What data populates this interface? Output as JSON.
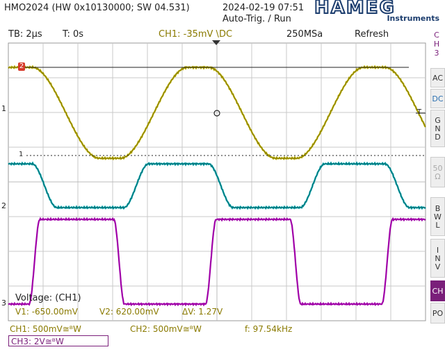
{
  "header": {
    "device": "HMO2024 (HW 0x10130000; SW 04.531)",
    "datetime": "2024-02-19 07:51",
    "trigger_status": "Auto-Trig. / Run",
    "brand": "HAMEG",
    "brand_sub": "Instruments"
  },
  "status_bar": {
    "timebase": "TB: 2µs",
    "time_offset": "T: 0s",
    "trigger": "CH1: -35mV \\DC",
    "sample_rate": "250MSa",
    "mode": "Refresh"
  },
  "sidebar": {
    "channel_label": [
      "C",
      "H",
      "3"
    ],
    "buttons": [
      {
        "name": "ac",
        "lines": [
          "AC"
        ]
      },
      {
        "name": "dc",
        "lines": [
          "DC"
        ]
      },
      {
        "name": "gnd",
        "lines": [
          "G",
          "N",
          "D"
        ]
      },
      {
        "name": "50ohm",
        "lines": [
          "50",
          "Ω"
        ]
      },
      {
        "name": "bwl",
        "lines": [
          "B",
          "W",
          "L"
        ]
      },
      {
        "name": "inv",
        "lines": [
          "I",
          "N",
          "V"
        ]
      },
      {
        "name": "ch",
        "lines": [
          "CH"
        ]
      },
      {
        "name": "po",
        "lines": [
          "PO"
        ]
      }
    ]
  },
  "cursor_readout": {
    "title": "Voltage: (CH1)",
    "v1": "V1: -650.00mV",
    "v2": "V2: 620.00mV",
    "delta": "ΔV: 1.27V"
  },
  "footer": {
    "ch1": "CH1: 500mV≅ᴮW",
    "ch2": "CH2: 500mV≅ᴮW",
    "frequency": "f: 97.54kHz",
    "ch3": "CH3: 2V≅ᴮW"
  },
  "markers": {
    "ch1": "1",
    "ch2": "2",
    "ch3": "3",
    "trigger_level": "1",
    "cursor": "2",
    "trigger_pos": "T"
  },
  "colors": {
    "ch1": "#bdb000",
    "ch2": "#00a0a8",
    "ch3": "#a000a8",
    "grid": "#c8c8c8",
    "brand": "#1c3d6e"
  }
}
